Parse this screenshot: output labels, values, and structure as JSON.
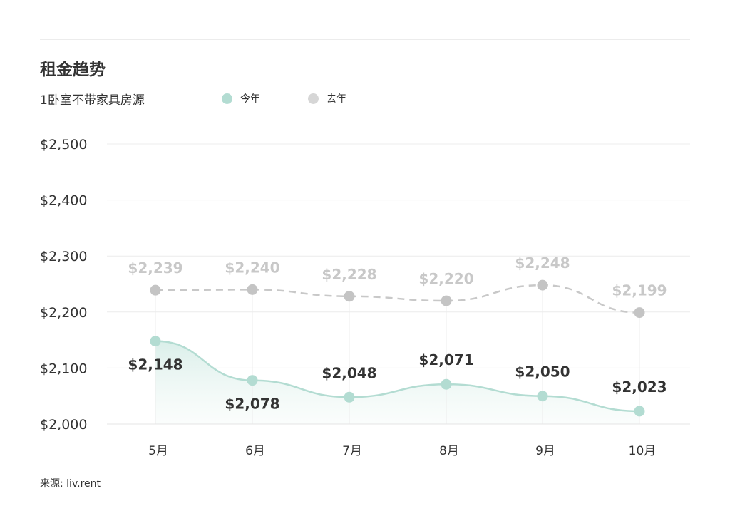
{
  "title": "租金趋势",
  "subtitle": "1卧室不带家具房源",
  "legend": [
    {
      "label": "今年",
      "color": "#b3dcd2"
    },
    {
      "label": "去年",
      "color": "#d6d6d6"
    }
  ],
  "source": "来源: liv.rent",
  "chart_data": {
    "type": "line",
    "categories": [
      "5月",
      "6月",
      "7月",
      "8月",
      "9月",
      "10月"
    ],
    "series": [
      {
        "name": "今年",
        "values": [
          2148,
          2078,
          2048,
          2071,
          2050,
          2023
        ],
        "labels": [
          "$2,148",
          "$2,078",
          "$2,048",
          "$2,071",
          "$2,050",
          "$2,023"
        ],
        "color": "#b3dcd2",
        "style": "solid",
        "area_fill": true
      },
      {
        "name": "去年",
        "values": [
          2239,
          2240,
          2228,
          2220,
          2248,
          2199
        ],
        "labels": [
          "$2,239",
          "$2,240",
          "$2,228",
          "$2,220",
          "$2,248",
          "$2,199"
        ],
        "color": "#c8c8c8",
        "style": "dashed"
      }
    ],
    "ylim": [
      2000,
      2500
    ],
    "yticks": [
      2000,
      2100,
      2200,
      2300,
      2400,
      2500
    ],
    "ytick_labels": [
      "$2,000",
      "$2,100",
      "$2,200",
      "$2,300",
      "$2,400",
      "$2,500"
    ],
    "grid": true,
    "legend_position": "top"
  }
}
